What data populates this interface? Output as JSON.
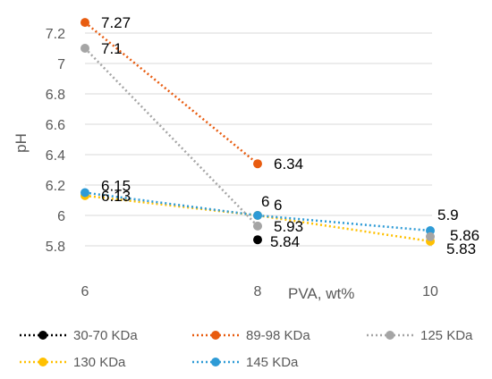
{
  "chart_data": {
    "type": "line",
    "xlabel": "PVA, wt%",
    "ylabel": "pH",
    "x_categories": [
      "6",
      "8",
      "10"
    ],
    "ylim": [
      5.7,
      7.3
    ],
    "yticks": [
      5.8,
      6.0,
      6.2,
      6.4,
      6.6,
      6.8,
      7.0,
      7.2
    ],
    "ytick_labels": [
      "5.8",
      "6",
      "6.2",
      "6.4",
      "6.6",
      "6.8",
      "7",
      "7.2"
    ],
    "grid": "horizontal",
    "legend_position": "bottom",
    "series": [
      {
        "name": "30-70 KDa",
        "color": "#000000",
        "points": [
          {
            "x": "8",
            "y": 5.84,
            "label": "5.84"
          }
        ]
      },
      {
        "name": "89-98 KDa",
        "color": "#e85c10",
        "points": [
          {
            "x": "6",
            "y": 7.27,
            "label": "7.27"
          },
          {
            "x": "8",
            "y": 6.34,
            "label": "6.34"
          }
        ]
      },
      {
        "name": "125 KDa",
        "color": "#a5a5a5",
        "points": [
          {
            "x": "6",
            "y": 7.1,
            "label": "7.1"
          },
          {
            "x": "8",
            "y": 5.93,
            "label": "5.93"
          }
        ]
      },
      {
        "name": "130 KDa",
        "color": "#ffc000",
        "points": [
          {
            "x": "6",
            "y": 6.13,
            "label": "6.13"
          },
          {
            "x": "8",
            "y": 6.0,
            "label": "6"
          },
          {
            "x": "10",
            "y": 5.83,
            "label": "5.83"
          }
        ]
      },
      {
        "name": "145 KDa",
        "color": "#2e9bd6",
        "points": [
          {
            "x": "6",
            "y": 6.15,
            "label": "6.15"
          },
          {
            "x": "8",
            "y": 6.0,
            "label": "6"
          },
          {
            "x": "10",
            "y": 5.9,
            "label": "5.9"
          }
        ]
      },
      {
        "name": "",
        "color": "#a5a5a5",
        "points": [
          {
            "x": "10",
            "y": 5.86,
            "label": "5.86"
          }
        ]
      }
    ]
  }
}
